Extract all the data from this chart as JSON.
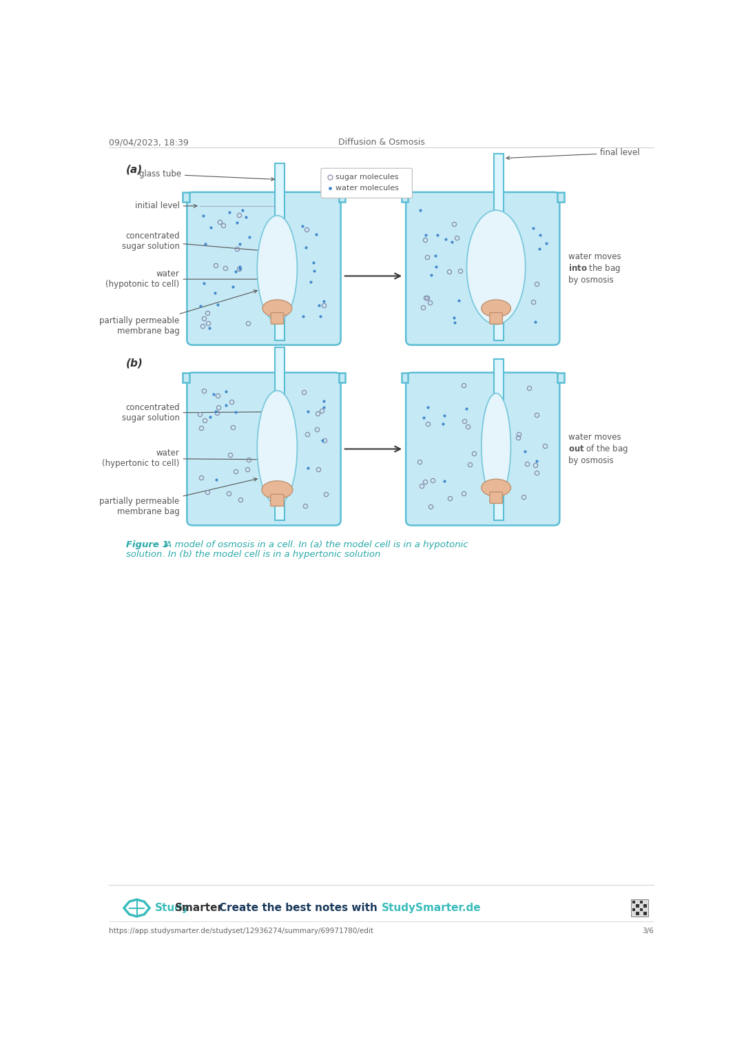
{
  "header_left": "09/04/2023, 18:39",
  "header_center": "Diffusion & Osmosis",
  "header_color": "#666666",
  "header_fontsize": 9,
  "caption_fontsize": 9.5,
  "caption_color": "#2aa8a8",
  "footer_url": "https://app.studysmarter.de/studyset/12936274/summary/69971780/edit",
  "footer_page": "3/6",
  "footer_fontsize": 7.5,
  "bg_color": "#ffffff",
  "beaker_fill": "#c5eaf5",
  "beaker_stroke": "#5bbdd4",
  "beaker_lw": 1.8,
  "tube_fill": "#ddf5fc",
  "tube_stroke": "#5bbdd4",
  "bag_fill": "#e5f5fb",
  "bag_stroke": "#7ac8dc",
  "cell_fill": "#e8b896",
  "cell_stroke": "#c09070",
  "arrow_color": "#333333",
  "dot_sugar_color": "#8888aa",
  "dot_water_color": "#4488cc",
  "label_color": "#555555",
  "legend_border": "#aaaaaa",
  "studysmarter_teal": "#3abcbc",
  "studysmarter_blue": "#1a3a5c",
  "section_a_label": "(a)",
  "section_b_label": "(b)",
  "legend_sugar": "sugar molecules",
  "legend_water": "water molecules",
  "label_glass_tube": "glass tube",
  "label_initial_level": "initial level",
  "label_conc_sugar_a": "concentrated\nsugar solution",
  "label_water_a": "water\n(hypotonic to cell)",
  "label_perm_bag_a": "partially permeable\nmembrane bag",
  "label_final_level": "final level",
  "label_conc_sugar_b": "concentrated\nsugar solution",
  "label_water_b": "water\n(hypertonic to cell)",
  "label_perm_bag_b": "partially permeable\nmembrane bag"
}
